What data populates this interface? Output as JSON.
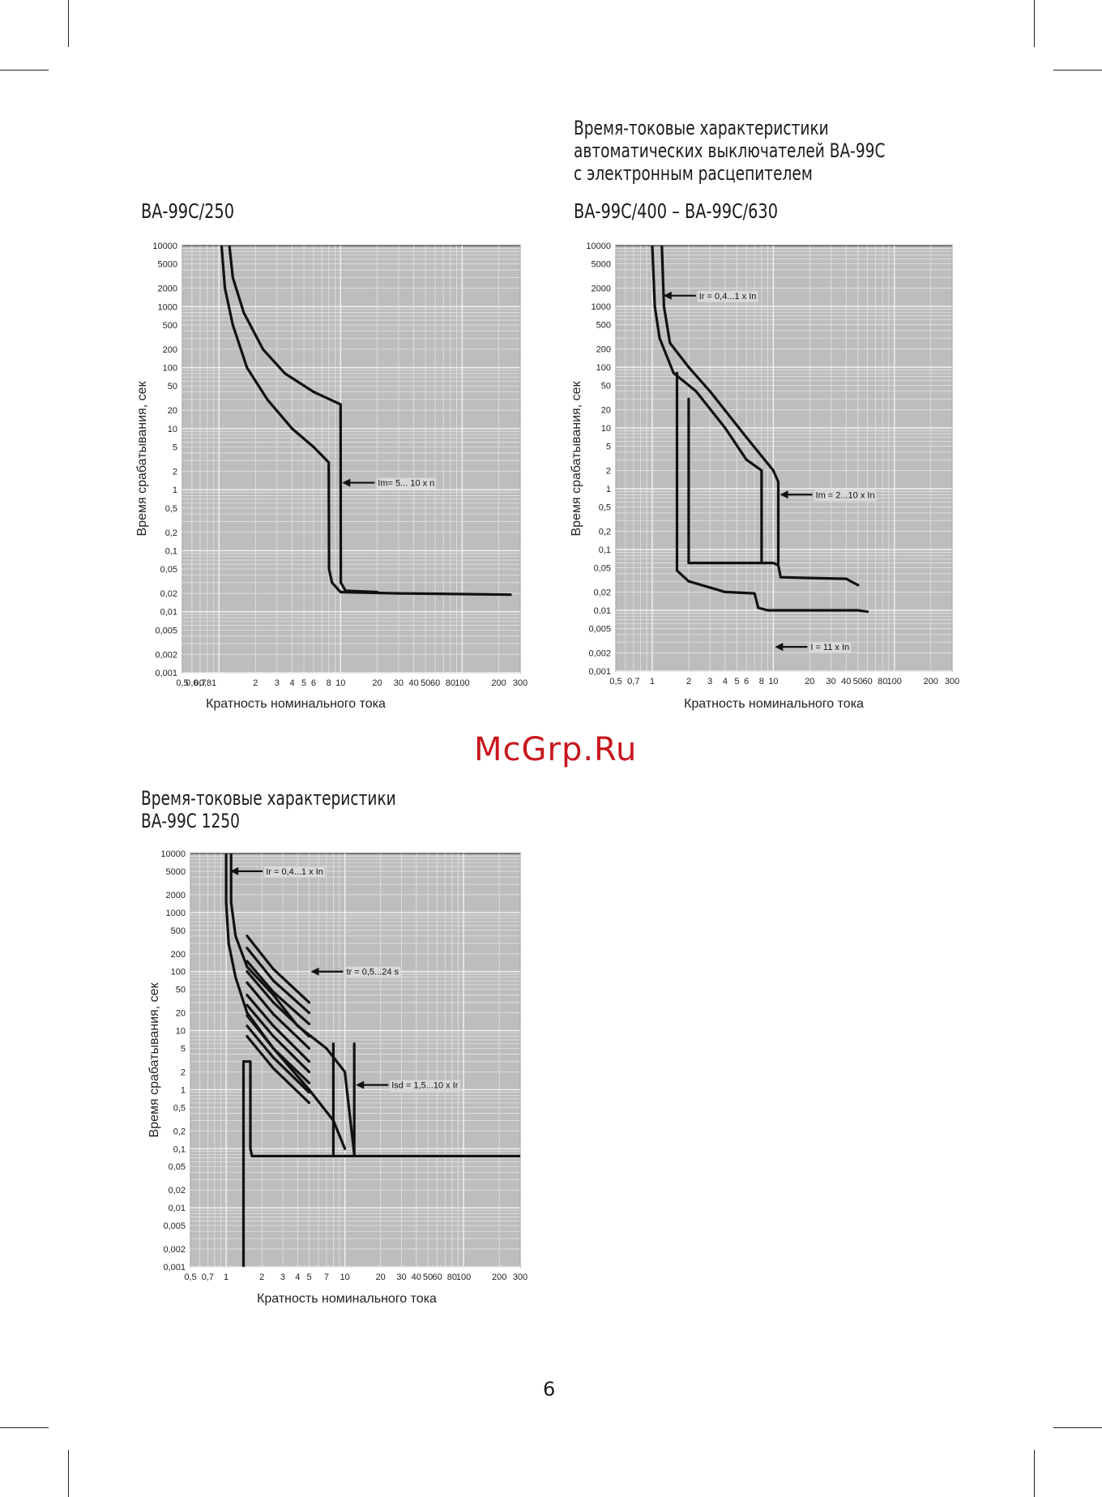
{
  "page": {
    "header_title_lines": [
      "Время-токовые характеристики",
      "автоматических выключателей ВА-99С",
      "с электронным расцепителем"
    ],
    "section2_title_lines": [
      "Время-токовые характеристики",
      "ВА-99С 1250"
    ],
    "watermark": "McGrp.Ru",
    "page_number": "6"
  },
  "chart_data": [
    {
      "type": "line",
      "title": "ВА-99С/250",
      "xlabel": "Кратность номинального тока",
      "ylabel": "Время срабатывания, сек",
      "xscale": "log",
      "yscale": "log",
      "xlim": [
        0.5,
        300
      ],
      "ylim": [
        0.001,
        10000
      ],
      "x_ticks": [
        {
          "v": 0.5,
          "t": "0,5"
        },
        {
          "v": 0.6,
          "t": "0,6"
        },
        {
          "v": 0.7,
          "t": "0,7"
        },
        {
          "v": 0.81,
          "t": "0,81"
        },
        {
          "v": 2,
          "t": "2"
        },
        {
          "v": 3,
          "t": "3"
        },
        {
          "v": 4,
          "t": "4"
        },
        {
          "v": 5,
          "t": "5"
        },
        {
          "v": 6,
          "t": "6"
        },
        {
          "v": 8,
          "t": "8"
        },
        {
          "v": 10,
          "t": "10"
        },
        {
          "v": 20,
          "t": "20"
        },
        {
          "v": 30,
          "t": "30"
        },
        {
          "v": 40,
          "t": "40"
        },
        {
          "v": 50,
          "t": "50"
        },
        {
          "v": 60,
          "t": "60"
        },
        {
          "v": 80,
          "t": "80"
        },
        {
          "v": 100,
          "t": "100"
        },
        {
          "v": 200,
          "t": "200"
        },
        {
          "v": 300,
          "t": "300"
        }
      ],
      "y_ticks": [
        {
          "v": 10000,
          "t": "10000"
        },
        {
          "v": 5000,
          "t": "5000"
        },
        {
          "v": 2000,
          "t": "2000"
        },
        {
          "v": 1000,
          "t": "1000"
        },
        {
          "v": 500,
          "t": "500"
        },
        {
          "v": 200,
          "t": "200"
        },
        {
          "v": 100,
          "t": "100"
        },
        {
          "v": 50,
          "t": "50"
        },
        {
          "v": 20,
          "t": "20"
        },
        {
          "v": 10,
          "t": "10"
        },
        {
          "v": 5,
          "t": "5"
        },
        {
          "v": 2,
          "t": "2"
        },
        {
          "v": 1,
          "t": "1"
        },
        {
          "v": 0.5,
          "t": "0,5"
        },
        {
          "v": 0.2,
          "t": "0,2"
        },
        {
          "v": 0.1,
          "t": "0,1"
        },
        {
          "v": 0.05,
          "t": "0,05"
        },
        {
          "v": 0.02,
          "t": "0,02"
        },
        {
          "v": 0.01,
          "t": "0,01"
        },
        {
          "v": 0.005,
          "t": "0,005"
        },
        {
          "v": 0.002,
          "t": "0,002"
        },
        {
          "v": 0.001,
          "t": "0,001"
        }
      ],
      "series": [
        {
          "points": [
            [
              1.05,
              10000
            ],
            [
              1.12,
              2000
            ],
            [
              1.3,
              500
            ],
            [
              1.7,
              100
            ],
            [
              2.5,
              30
            ],
            [
              4,
              10
            ],
            [
              6,
              5
            ],
            [
              8,
              2.8
            ],
            [
              8.05,
              0.05
            ],
            [
              8.5,
              0.03
            ],
            [
              10,
              0.021
            ],
            [
              30,
              0.02
            ],
            [
              250,
              0.019
            ]
          ]
        },
        {
          "points": [
            [
              1.22,
              10000
            ],
            [
              1.3,
              3000
            ],
            [
              1.6,
              800
            ],
            [
              2.3,
              200
            ],
            [
              3.5,
              80
            ],
            [
              6,
              40
            ],
            [
              10,
              25
            ],
            [
              10.05,
              0.03
            ],
            [
              11,
              0.022
            ],
            [
              20,
              0.021
            ]
          ]
        }
      ],
      "annotations": [
        {
          "text": "Im= 5... 10 x n",
          "at": [
            10,
            1.3
          ]
        }
      ]
    },
    {
      "type": "line",
      "title": "ВА-99С/400 – ВА-99С/630",
      "xlabel": "Кратность номинального тока",
      "ylabel": "Время срабатывания, сек",
      "xscale": "log",
      "yscale": "log",
      "xlim": [
        0.5,
        300
      ],
      "ylim": [
        0.001,
        10000
      ],
      "x_ticks": [
        {
          "v": 0.5,
          "t": "0,5"
        },
        {
          "v": 0.7,
          "t": "0,7"
        },
        {
          "v": 1,
          "t": "1"
        },
        {
          "v": 2,
          "t": "2"
        },
        {
          "v": 3,
          "t": "3"
        },
        {
          "v": 4,
          "t": "4"
        },
        {
          "v": 5,
          "t": "5"
        },
        {
          "v": 6,
          "t": "6"
        },
        {
          "v": 8,
          "t": "8"
        },
        {
          "v": 10,
          "t": "10"
        },
        {
          "v": 20,
          "t": "20"
        },
        {
          "v": 30,
          "t": "30"
        },
        {
          "v": 40,
          "t": "40"
        },
        {
          "v": 50,
          "t": "50"
        },
        {
          "v": 60,
          "t": "60"
        },
        {
          "v": 80,
          "t": "80"
        },
        {
          "v": 100,
          "t": "100"
        },
        {
          "v": 200,
          "t": "200"
        },
        {
          "v": 300,
          "t": "300"
        }
      ],
      "y_ticks": [
        {
          "v": 10000,
          "t": "10000"
        },
        {
          "v": 5000,
          "t": "5000"
        },
        {
          "v": 2000,
          "t": "2000"
        },
        {
          "v": 1000,
          "t": "1000"
        },
        {
          "v": 500,
          "t": "500"
        },
        {
          "v": 200,
          "t": "200"
        },
        {
          "v": 100,
          "t": "100"
        },
        {
          "v": 50,
          "t": "50"
        },
        {
          "v": 20,
          "t": "20"
        },
        {
          "v": 10,
          "t": "10"
        },
        {
          "v": 5,
          "t": "5"
        },
        {
          "v": 2,
          "t": "2"
        },
        {
          "v": 1,
          "t": "1"
        },
        {
          "v": 0.5,
          "t": "0,5"
        },
        {
          "v": 0.2,
          "t": "0,2"
        },
        {
          "v": 0.1,
          "t": "0,1"
        },
        {
          "v": 0.05,
          "t": "0,05"
        },
        {
          "v": 0.02,
          "t": "0,02"
        },
        {
          "v": 0.01,
          "t": "0,01"
        },
        {
          "v": 0.005,
          "t": "0,005"
        },
        {
          "v": 0.002,
          "t": "0,002"
        },
        {
          "v": 0.001,
          "t": "0,001"
        }
      ],
      "series": [
        {
          "points": [
            [
              1,
              10000
            ],
            [
              1.05,
              1000
            ],
            [
              1.15,
              300
            ],
            [
              1.5,
              80
            ],
            [
              2.3,
              40
            ],
            [
              4,
              10
            ],
            [
              6,
              3
            ],
            [
              8,
              2
            ],
            [
              8,
              0.06
            ]
          ]
        },
        {
          "points": [
            [
              1.2,
              10000
            ],
            [
              1.25,
              1000
            ],
            [
              1.4,
              250
            ],
            [
              2,
              100
            ],
            [
              3,
              40
            ],
            [
              6,
              7
            ],
            [
              10,
              2
            ],
            [
              11,
              1.3
            ],
            [
              11,
              0.06
            ]
          ]
        },
        {
          "points": [
            [
              1.6,
              80
            ],
            [
              1.6,
              0.045
            ],
            [
              2,
              0.03
            ],
            [
              4,
              0.02
            ],
            [
              7,
              0.019
            ],
            [
              7.5,
              0.011
            ],
            [
              9,
              0.01
            ],
            [
              50,
              0.01
            ],
            [
              60,
              0.0095
            ]
          ]
        },
        {
          "points": [
            [
              2,
              30
            ],
            [
              2,
              0.06
            ],
            [
              10,
              0.06
            ],
            [
              11,
              0.055
            ],
            [
              11.5,
              0.035
            ],
            [
              20,
              0.034
            ],
            [
              40,
              0.033
            ],
            [
              50,
              0.026
            ]
          ]
        }
      ],
      "annotations": [
        {
          "text": "Ir = 0,4...1 x In",
          "at": [
            1.2,
            1500
          ]
        },
        {
          "text": "Im = 2...10 x In",
          "at": [
            11,
            0.8
          ]
        },
        {
          "text": "I = 11 x In",
          "at": [
            10,
            0.0025
          ]
        }
      ]
    },
    {
      "type": "line",
      "title": "",
      "xlabel": "Кратность номинального тока",
      "ylabel": "Время срабатывания, сек",
      "xscale": "log",
      "yscale": "log",
      "xlim": [
        0.5,
        300
      ],
      "ylim": [
        0.001,
        10000
      ],
      "x_ticks": [
        {
          "v": 0.5,
          "t": "0,5"
        },
        {
          "v": 0.7,
          "t": "0,7"
        },
        {
          "v": 1,
          "t": "1"
        },
        {
          "v": 2,
          "t": "2"
        },
        {
          "v": 3,
          "t": "3"
        },
        {
          "v": 4,
          "t": "4"
        },
        {
          "v": 5,
          "t": "5"
        },
        {
          "v": 7,
          "t": "7"
        },
        {
          "v": 10,
          "t": "10"
        },
        {
          "v": 20,
          "t": "20"
        },
        {
          "v": 30,
          "t": "30"
        },
        {
          "v": 40,
          "t": "40"
        },
        {
          "v": 50,
          "t": "50"
        },
        {
          "v": 60,
          "t": "60"
        },
        {
          "v": 80,
          "t": "80"
        },
        {
          "v": 100,
          "t": "100"
        },
        {
          "v": 200,
          "t": "200"
        },
        {
          "v": 300,
          "t": "300"
        }
      ],
      "y_ticks": [
        {
          "v": 10000,
          "t": "10000"
        },
        {
          "v": 5000,
          "t": "5000"
        },
        {
          "v": 2000,
          "t": "2000"
        },
        {
          "v": 1000,
          "t": "1000"
        },
        {
          "v": 500,
          "t": "500"
        },
        {
          "v": 200,
          "t": "200"
        },
        {
          "v": 100,
          "t": "100"
        },
        {
          "v": 50,
          "t": "50"
        },
        {
          "v": 20,
          "t": "20"
        },
        {
          "v": 10,
          "t": "10"
        },
        {
          "v": 5,
          "t": "5"
        },
        {
          "v": 2,
          "t": "2"
        },
        {
          "v": 1,
          "t": "1"
        },
        {
          "v": 0.5,
          "t": "0,5"
        },
        {
          "v": 0.2,
          "t": "0,2"
        },
        {
          "v": 0.1,
          "t": "0,1"
        },
        {
          "v": 0.05,
          "t": "0,05"
        },
        {
          "v": 0.02,
          "t": "0,02"
        },
        {
          "v": 0.01,
          "t": "0,01"
        },
        {
          "v": 0.005,
          "t": "0,005"
        },
        {
          "v": 0.002,
          "t": "0,002"
        },
        {
          "v": 0.001,
          "t": "0,001"
        }
      ],
      "series": [
        {
          "points": [
            [
              1,
              10000
            ],
            [
              1,
              1500
            ],
            [
              1.05,
              300
            ],
            [
              1.2,
              80
            ],
            [
              1.5,
              20
            ],
            [
              2.5,
              5
            ],
            [
              5,
              1
            ],
            [
              8,
              0.3
            ],
            [
              10,
              0.1
            ]
          ]
        },
        {
          "points": [
            [
              1.1,
              10000
            ],
            [
              1.1,
              1500
            ],
            [
              1.2,
              400
            ],
            [
              1.5,
              120
            ],
            [
              2.5,
              40
            ],
            [
              4,
              12
            ],
            [
              7,
              5
            ],
            [
              10,
              2
            ],
            [
              12,
              0.08
            ]
          ]
        },
        {
          "points": [
            [
              1.5,
              400
            ],
            [
              2.5,
              110
            ],
            [
              5,
              30
            ]
          ]
        },
        {
          "points": [
            [
              1.5,
              250
            ],
            [
              2.5,
              70
            ],
            [
              5,
              20
            ]
          ]
        },
        {
          "points": [
            [
              1.5,
              150
            ],
            [
              2.5,
              45
            ],
            [
              5,
              13
            ]
          ]
        },
        {
          "points": [
            [
              1.5,
              100
            ],
            [
              2.5,
              30
            ],
            [
              5,
              8
            ]
          ]
        },
        {
          "points": [
            [
              1.5,
              65
            ],
            [
              2.5,
              19
            ],
            [
              5,
              5
            ]
          ]
        },
        {
          "points": [
            [
              1.5,
              40
            ],
            [
              2.5,
              12
            ],
            [
              5,
              3
            ]
          ]
        },
        {
          "points": [
            [
              1.5,
              27
            ],
            [
              2.5,
              8
            ],
            [
              5,
              2
            ]
          ]
        },
        {
          "points": [
            [
              1.5,
              18
            ],
            [
              2.5,
              5
            ],
            [
              5,
              1.3
            ]
          ]
        },
        {
          "points": [
            [
              1.5,
              12
            ],
            [
              2.5,
              3.5
            ],
            [
              5,
              0.9
            ]
          ]
        },
        {
          "points": [
            [
              1.5,
              8
            ],
            [
              2.5,
              2.3
            ],
            [
              5,
              0.6
            ]
          ]
        },
        {
          "points": [
            [
              1.4,
              3
            ],
            [
              1.6,
              3
            ],
            [
              1.6,
              0.1
            ],
            [
              1.65,
              0.075
            ],
            [
              300,
              0.075
            ]
          ]
        },
        {
          "points": [
            [
              1.4,
              3
            ],
            [
              1.4,
              0.001
            ]
          ]
        },
        {
          "points": [
            [
              8,
              6
            ],
            [
              8,
              0.08
            ]
          ]
        },
        {
          "points": [
            [
              12,
              6
            ],
            [
              12,
              0.08
            ]
          ]
        }
      ],
      "annotations": [
        {
          "text": "Ir = 0,4...1 x In",
          "at": [
            1.05,
            5000
          ]
        },
        {
          "text": "tr = 0,5...24 s",
          "at": [
            5,
            100
          ]
        },
        {
          "text": "Isd = 1,5...10 x Ir",
          "at": [
            12,
            1.2
          ]
        }
      ]
    }
  ]
}
